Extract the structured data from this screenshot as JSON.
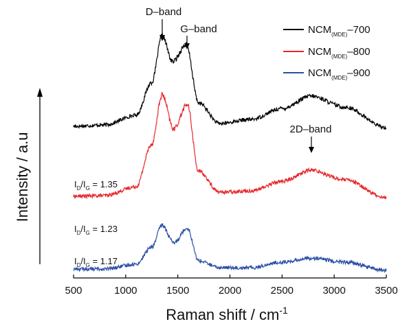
{
  "chart_data": {
    "type": "line",
    "xlabel": "Raman shift / cm",
    "xlabel_sup": "-1",
    "ylabel": "Intensity / a.u",
    "xlim": [
      500,
      3500
    ],
    "xticks": [
      500,
      1000,
      1500,
      2000,
      2500,
      3000,
      3500
    ],
    "y_ticks_shown": false,
    "grid": false,
    "legend_position": "top-right",
    "series": [
      {
        "name_base": "NCM",
        "name_sub": "(MDE)",
        "name_suffix": "–700",
        "color": "#000000",
        "offset": 2.0,
        "points": [
          [
            500,
            0.16
          ],
          [
            800,
            0.18
          ],
          [
            1100,
            0.32
          ],
          [
            1250,
            0.8
          ],
          [
            1350,
            1.48
          ],
          [
            1450,
            1.1
          ],
          [
            1580,
            1.35
          ],
          [
            1700,
            0.5
          ],
          [
            1900,
            0.2
          ],
          [
            2200,
            0.26
          ],
          [
            2500,
            0.42
          ],
          [
            2780,
            0.6
          ],
          [
            3100,
            0.44
          ],
          [
            3500,
            0.14
          ]
        ]
      },
      {
        "name_base": "NCM",
        "name_sub": "(MDE)",
        "name_suffix": "–800",
        "color": "#e8262a",
        "offset": 1.0,
        "points": [
          [
            500,
            0.14
          ],
          [
            800,
            0.15
          ],
          [
            1100,
            0.28
          ],
          [
            1250,
            0.9
          ],
          [
            1350,
            1.62
          ],
          [
            1460,
            1.12
          ],
          [
            1590,
            1.48
          ],
          [
            1700,
            0.5
          ],
          [
            1900,
            0.2
          ],
          [
            2200,
            0.22
          ],
          [
            2500,
            0.36
          ],
          [
            2780,
            0.52
          ],
          [
            3100,
            0.38
          ],
          [
            3500,
            0.12
          ]
        ]
      },
      {
        "name_base": "NCM",
        "name_sub": "(MDE)",
        "name_suffix": "–900",
        "color": "#2a4ea6",
        "offset": 0.0,
        "points": [
          [
            500,
            0.08
          ],
          [
            800,
            0.08
          ],
          [
            1100,
            0.15
          ],
          [
            1250,
            0.4
          ],
          [
            1350,
            0.72
          ],
          [
            1460,
            0.46
          ],
          [
            1590,
            0.68
          ],
          [
            1700,
            0.2
          ],
          [
            1900,
            0.1
          ],
          [
            2200,
            0.1
          ],
          [
            2500,
            0.18
          ],
          [
            2780,
            0.24
          ],
          [
            3100,
            0.18
          ],
          [
            3500,
            0.06
          ]
        ]
      }
    ],
    "annotations": {
      "d_band": {
        "label": "D–band",
        "x": 1350
      },
      "g_band": {
        "label": "G–band",
        "x": 1590
      },
      "two_d_band": {
        "label": "2D–band",
        "x": 2780
      }
    },
    "ratios": [
      {
        "prefix": "I",
        "sub1": "D",
        "mid": "/I",
        "sub2": "G",
        "value": " = 1.35"
      },
      {
        "prefix": "I",
        "sub1": "D",
        "mid": "/I",
        "sub2": "G",
        "value": " = 1.23"
      },
      {
        "prefix": "I",
        "sub1": "D",
        "mid": "/I",
        "sub2": "G",
        "value": " = 1.17"
      }
    ]
  }
}
